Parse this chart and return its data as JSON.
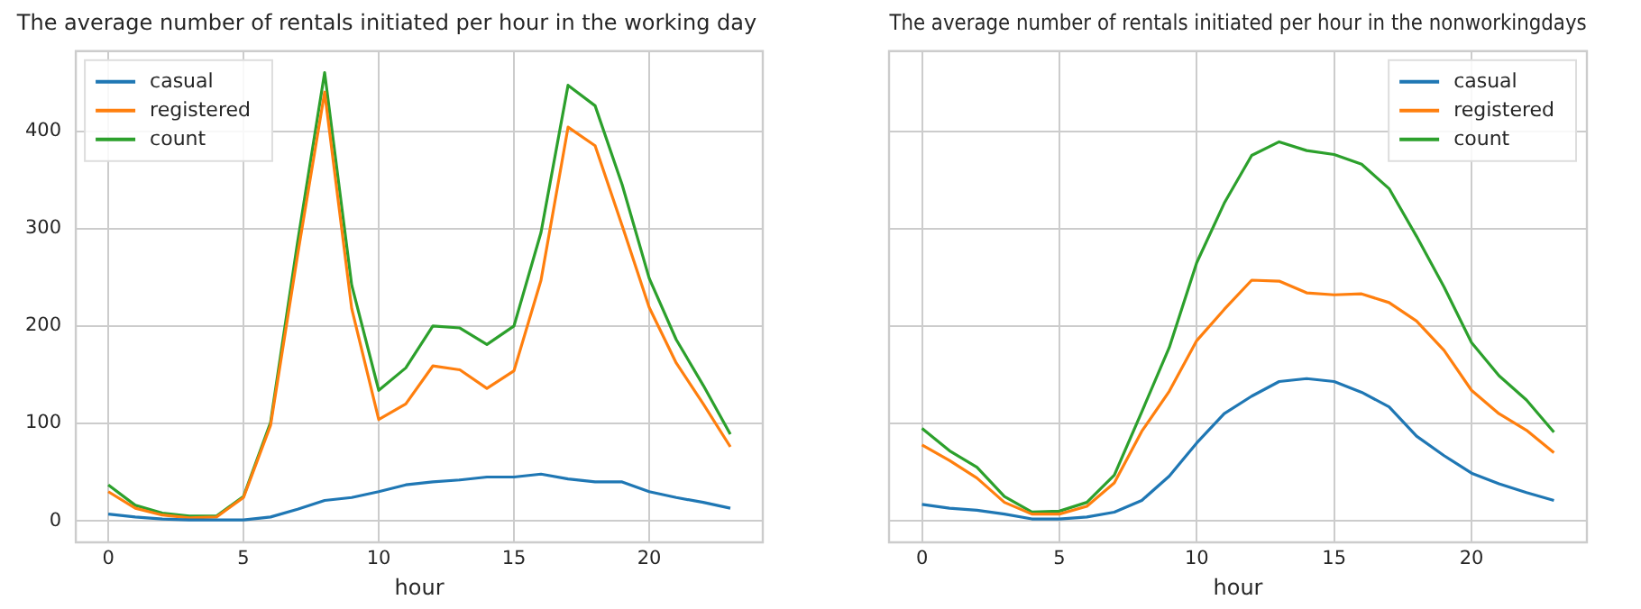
{
  "chart_data": [
    {
      "type": "line",
      "title": "The average number of rentals initiated per hour in the working day",
      "xlabel": "hour",
      "x": [
        0,
        1,
        2,
        3,
        4,
        5,
        6,
        7,
        8,
        9,
        10,
        11,
        12,
        13,
        14,
        15,
        16,
        17,
        18,
        19,
        20,
        21,
        22,
        23
      ],
      "xlim": [
        -1.2,
        24.2
      ],
      "xticks": [
        0,
        5,
        10,
        15,
        20
      ],
      "ylim": [
        -22,
        482
      ],
      "yticks": [
        0,
        100,
        200,
        300,
        400
      ],
      "grid": true,
      "legend": "top left",
      "series": [
        {
          "name": "casual",
          "color": "#1f77b4",
          "values": [
            7,
            4,
            2,
            1,
            1,
            1,
            4,
            12,
            21,
            24,
            30,
            37,
            40,
            42,
            45,
            45,
            48,
            43,
            40,
            40,
            30,
            24,
            19,
            13
          ]
        },
        {
          "name": "registered",
          "color": "#ff7f0e",
          "values": [
            30,
            13,
            6,
            3,
            4,
            24,
            98,
            273,
            440,
            218,
            104,
            120,
            159,
            155,
            136,
            154,
            247,
            404,
            385,
            303,
            219,
            162,
            120,
            76
          ]
        },
        {
          "name": "count",
          "color": "#2ca02c",
          "values": [
            37,
            16,
            8,
            5,
            5,
            25,
            101,
            286,
            460,
            242,
            134,
            157,
            200,
            198,
            181,
            200,
            296,
            447,
            426,
            345,
            249,
            186,
            139,
            89
          ]
        }
      ]
    },
    {
      "type": "line",
      "title": "The average number of rentals initiated per hour in the nonworkingdays",
      "xlabel": "hour",
      "x": [
        0,
        1,
        2,
        3,
        4,
        5,
        6,
        7,
        8,
        9,
        10,
        11,
        12,
        13,
        14,
        15,
        16,
        17,
        18,
        19,
        20,
        21,
        22,
        23
      ],
      "xlim": [
        -1.2,
        24.2
      ],
      "xticks": [
        0,
        5,
        10,
        15,
        20
      ],
      "ylim": [
        -22,
        482
      ],
      "yticks": [
        0,
        100,
        200,
        300,
        400
      ],
      "tick_labels": "x",
      "grid": true,
      "legend": "top right",
      "series": [
        {
          "name": "casual",
          "color": "#1f77b4",
          "values": [
            17,
            13,
            11,
            7,
            2,
            2,
            4,
            9,
            21,
            46,
            80,
            110,
            128,
            143,
            146,
            143,
            132,
            117,
            87,
            67,
            49,
            38,
            29,
            21
          ]
        },
        {
          "name": "registered",
          "color": "#ff7f0e",
          "values": [
            78,
            62,
            44,
            19,
            7,
            7,
            15,
            39,
            92,
            133,
            185,
            217,
            247,
            246,
            234,
            232,
            233,
            224,
            205,
            175,
            134,
            110,
            93,
            70
          ]
        },
        {
          "name": "count",
          "color": "#2ca02c",
          "values": [
            95,
            72,
            55,
            25,
            9,
            10,
            19,
            47,
            112,
            178,
            265,
            326,
            375,
            389,
            380,
            376,
            366,
            341,
            292,
            240,
            183,
            149,
            124,
            91
          ]
        }
      ]
    }
  ]
}
